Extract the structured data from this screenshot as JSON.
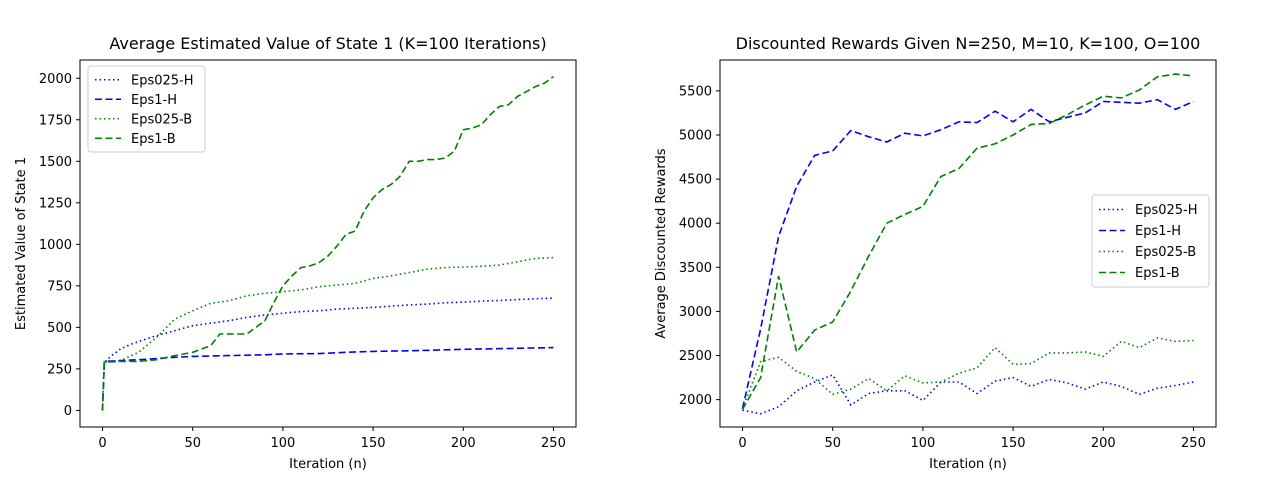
{
  "chart_data": [
    {
      "type": "line",
      "title": "Average Estimated Value of State 1 (K=100 Iterations)",
      "xlabel": "Iteration (n)",
      "ylabel": "Estimated Value of State 1",
      "xlim": [
        -12.5,
        262.5
      ],
      "ylim": [
        -100,
        2110
      ],
      "xticks": [
        0,
        50,
        100,
        150,
        200,
        250
      ],
      "yticks": [
        0,
        250,
        500,
        750,
        1000,
        1250,
        1500,
        1750,
        2000
      ],
      "legend_position": "upper left",
      "series": [
        {
          "name": "Eps025-H",
          "color": "#0000ff",
          "dash": "dotted",
          "x": [
            0,
            1,
            5,
            10,
            15,
            20,
            30,
            40,
            50,
            60,
            70,
            80,
            90,
            100,
            110,
            120,
            130,
            140,
            150,
            160,
            170,
            180,
            190,
            200,
            210,
            220,
            230,
            240,
            250
          ],
          "y": [
            0,
            290,
            330,
            370,
            395,
            415,
            450,
            480,
            510,
            525,
            540,
            560,
            575,
            585,
            595,
            600,
            610,
            615,
            620,
            628,
            635,
            640,
            648,
            652,
            658,
            662,
            667,
            672,
            677
          ]
        },
        {
          "name": "Eps1-H",
          "color": "#0000ff",
          "dash": "dashed",
          "x": [
            0,
            1,
            10,
            20,
            30,
            40,
            50,
            70,
            90,
            100,
            120,
            135,
            150,
            175,
            200,
            225,
            250
          ],
          "y": [
            0,
            295,
            300,
            305,
            312,
            320,
            325,
            330,
            335,
            340,
            342,
            350,
            355,
            360,
            368,
            373,
            378
          ]
        },
        {
          "name": "Eps025-B",
          "color": "#008000",
          "dash": "dotted",
          "x": [
            0,
            1,
            10,
            20,
            30,
            40,
            50,
            60,
            70,
            80,
            90,
            100,
            110,
            120,
            130,
            140,
            150,
            160,
            170,
            180,
            190,
            200,
            210,
            220,
            230,
            240,
            250
          ],
          "y": [
            0,
            290,
            300,
            350,
            440,
            550,
            600,
            645,
            660,
            690,
            705,
            715,
            725,
            745,
            755,
            765,
            795,
            810,
            830,
            850,
            860,
            863,
            868,
            875,
            895,
            915,
            920
          ]
        },
        {
          "name": "Eps1-B",
          "color": "#008000",
          "dash": "dashed",
          "x": [
            0,
            1,
            10,
            20,
            30,
            40,
            50,
            55,
            60,
            65,
            75,
            80,
            85,
            90,
            95,
            100,
            105,
            110,
            115,
            120,
            125,
            130,
            135,
            140,
            145,
            150,
            155,
            160,
            165,
            170,
            175,
            180,
            185,
            190,
            195,
            200,
            205,
            210,
            215,
            220,
            225,
            230,
            235,
            240,
            245,
            250
          ],
          "y": [
            0,
            290,
            295,
            295,
            305,
            330,
            350,
            370,
            390,
            460,
            460,
            460,
            500,
            540,
            650,
            750,
            810,
            860,
            870,
            890,
            930,
            990,
            1060,
            1080,
            1200,
            1280,
            1330,
            1360,
            1410,
            1500,
            1500,
            1510,
            1510,
            1520,
            1560,
            1690,
            1700,
            1720,
            1780,
            1830,
            1840,
            1890,
            1920,
            1950,
            1970,
            2010
          ]
        }
      ]
    },
    {
      "type": "line",
      "title": "Discounted Rewards Given N=250, M=10, K=100, O=100",
      "xlabel": "Iteration (n)",
      "ylabel": "Average Discounted Rewards",
      "xlim": [
        -12.5,
        262.5
      ],
      "ylim": [
        1690,
        5850
      ],
      "xticks": [
        0,
        50,
        100,
        150,
        200,
        250
      ],
      "yticks": [
        2000,
        2500,
        3000,
        3500,
        4000,
        4500,
        5000,
        5500
      ],
      "legend_position": "center right",
      "series": [
        {
          "name": "Eps025-H",
          "color": "#0000ff",
          "dash": "dotted",
          "x": [
            0,
            10,
            20,
            30,
            40,
            50,
            60,
            70,
            80,
            90,
            100,
            110,
            120,
            130,
            140,
            150,
            160,
            170,
            180,
            190,
            200,
            210,
            220,
            230,
            240,
            250
          ],
          "y": [
            1880,
            1840,
            1920,
            2100,
            2200,
            2280,
            1940,
            2070,
            2100,
            2100,
            1990,
            2200,
            2200,
            2070,
            2210,
            2250,
            2150,
            2230,
            2190,
            2120,
            2200,
            2150,
            2060,
            2130,
            2160,
            2200
          ]
        },
        {
          "name": "Eps1-H",
          "color": "#0000ff",
          "dash": "dashed",
          "x": [
            0,
            10,
            20,
            30,
            40,
            50,
            60,
            70,
            80,
            90,
            100,
            110,
            120,
            130,
            140,
            150,
            160,
            170,
            180,
            190,
            200,
            210,
            220,
            230,
            240,
            250
          ],
          "y": [
            1900,
            2800,
            3850,
            4420,
            4770,
            4820,
            5050,
            4980,
            4920,
            5020,
            4990,
            5060,
            5150,
            5140,
            5270,
            5150,
            5290,
            5150,
            5200,
            5250,
            5380,
            5370,
            5360,
            5400,
            5290,
            5380
          ]
        },
        {
          "name": "Eps025-B",
          "color": "#008000",
          "dash": "dotted",
          "x": [
            0,
            10,
            20,
            30,
            40,
            50,
            60,
            70,
            80,
            90,
            100,
            110,
            120,
            130,
            140,
            150,
            160,
            170,
            180,
            190,
            200,
            210,
            220,
            230,
            240,
            250
          ],
          "y": [
            1900,
            2430,
            2480,
            2320,
            2240,
            2060,
            2120,
            2240,
            2100,
            2270,
            2190,
            2200,
            2300,
            2360,
            2590,
            2400,
            2410,
            2530,
            2530,
            2540,
            2490,
            2660,
            2590,
            2700,
            2660,
            2670
          ]
        },
        {
          "name": "Eps1-B",
          "color": "#008000",
          "dash": "dashed",
          "x": [
            0,
            10,
            20,
            30,
            40,
            50,
            60,
            70,
            80,
            90,
            100,
            110,
            120,
            130,
            140,
            150,
            160,
            170,
            180,
            190,
            200,
            210,
            220,
            230,
            240,
            250
          ],
          "y": [
            1890,
            2250,
            3400,
            2540,
            2790,
            2880,
            3230,
            3630,
            4000,
            4100,
            4190,
            4530,
            4620,
            4850,
            4900,
            5000,
            5120,
            5130,
            5230,
            5340,
            5440,
            5420,
            5510,
            5660,
            5690,
            5670
          ]
        }
      ]
    }
  ]
}
